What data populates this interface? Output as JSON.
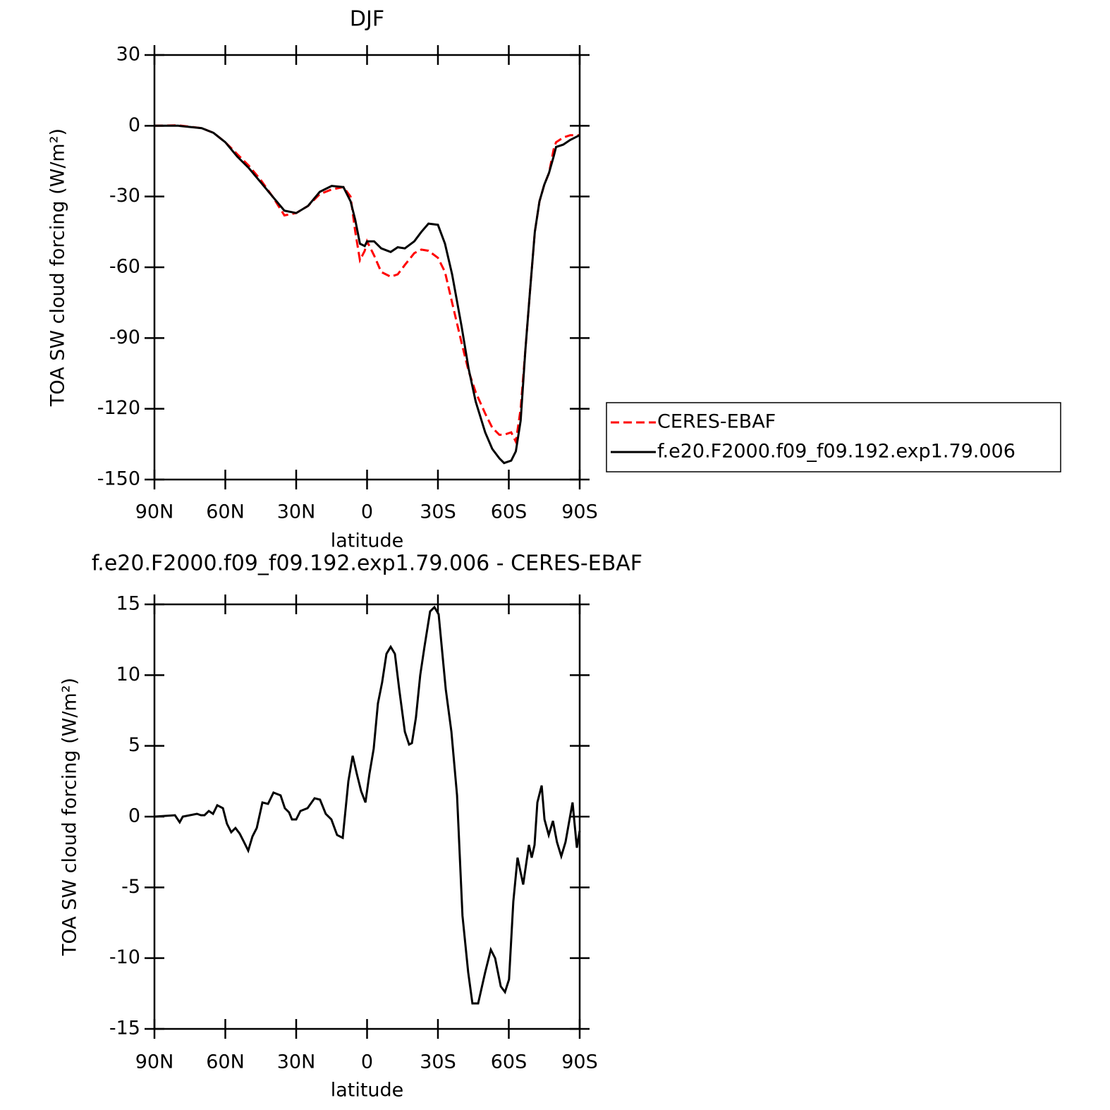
{
  "chart_data": [
    {
      "type": "line",
      "title": "DJF",
      "xlabel": "latitude",
      "ylabel": "TOA SW cloud forcing (W/m²)",
      "x": [
        90,
        80,
        70,
        65,
        60,
        55,
        50,
        45,
        40,
        35,
        30,
        25,
        20,
        15,
        10,
        7,
        5,
        3,
        1,
        0,
        -3,
        -6,
        -10,
        -13,
        -16,
        -20,
        -23,
        -26,
        -30,
        -33,
        -36,
        -40,
        -43,
        -46,
        -50,
        -53,
        -56,
        -58,
        -61,
        -63,
        -65,
        -67,
        -69,
        -71,
        -73,
        -75,
        -77,
        -79,
        -80,
        -83,
        -86,
        -90
      ],
      "series": [
        {
          "name": "CERES-EBAF",
          "color": "#ff0000",
          "style": "dashed",
          "values": [
            0,
            0.2,
            -1,
            -3,
            -7,
            -12,
            -17,
            -23,
            -30,
            -38,
            -37,
            -34,
            -29,
            -27,
            -26,
            -30,
            -45,
            -57,
            -53,
            -49,
            -55,
            -62,
            -64,
            -63,
            -59,
            -54,
            -52.5,
            -53,
            -56,
            -62,
            -75,
            -92,
            -104,
            -113,
            -122,
            -128,
            -131,
            -131,
            -130,
            -134,
            -120,
            -95,
            -70,
            -45,
            -32,
            -25,
            -20,
            -10,
            -7,
            -5,
            -4,
            -4
          ]
        },
        {
          "name": "f.e20.F2000.f09_f09.192.exp1.79.006",
          "color": "#000000",
          "style": "solid",
          "values": [
            0,
            0,
            -1,
            -3,
            -7,
            -13,
            -18,
            -24,
            -30,
            -36,
            -37,
            -34,
            -28,
            -25.5,
            -26,
            -32,
            -40,
            -50,
            -51,
            -49,
            -49,
            -52,
            -53.5,
            -51.5,
            -52,
            -49,
            -45,
            -41.5,
            -42,
            -50,
            -63,
            -85,
            -103,
            -117,
            -130,
            -137,
            -141,
            -143,
            -142,
            -138,
            -125,
            -95,
            -70,
            -45,
            -32,
            -25,
            -20,
            -13,
            -9,
            -8,
            -6,
            -4
          ]
        }
      ],
      "xlim": [
        90,
        -90
      ],
      "xticks": [
        {
          "value": 90,
          "label": "90N"
        },
        {
          "value": 60,
          "label": "60N"
        },
        {
          "value": 30,
          "label": "30N"
        },
        0,
        {
          "value": -30,
          "label": "30S"
        },
        {
          "value": -60,
          "label": "60S"
        },
        {
          "value": -90,
          "label": "90S"
        }
      ],
      "ylim": [
        -150,
        30
      ],
      "yticks": [
        -150,
        -120,
        -90,
        -60,
        -30,
        0,
        30
      ],
      "legend": "right"
    },
    {
      "type": "line",
      "title": "f.e20.F2000.f09_f09.192.exp1.79.006 - CERES-EBAF",
      "xlabel": "latitude",
      "ylabel": "TOA SW cloud forcing (W/m²)",
      "x": [
        90,
        81.3,
        79.3,
        78,
        72,
        70.3,
        68.8,
        67,
        65.2,
        63.4,
        61,
        59.3,
        57.5,
        55.7,
        53.9,
        52.1,
        50.3,
        48.5,
        46.7,
        44.3,
        41.9,
        39.6,
        36.6,
        34.8,
        33,
        31.8,
        30,
        28.2,
        25.2,
        22.2,
        19.9,
        17.5,
        15.1,
        12.7,
        10.3,
        7.9,
        6.1,
        4.3,
        2.5,
        0.7,
        -1,
        -2.8,
        -4.6,
        -6.4,
        -8.2,
        -10,
        -11.8,
        -13.6,
        -16,
        -17.8,
        -19,
        -20.7,
        -22.5,
        -24.3,
        -26.7,
        -28.5,
        -30.3,
        -33.3,
        -35.7,
        -38.1,
        -40.4,
        -42.8,
        -44.6,
        -47,
        -50,
        -52.4,
        -54.2,
        -56.6,
        -58.4,
        -60.1,
        -61.9,
        -63.7,
        -66.1,
        -68.5,
        -69.7,
        -70.9,
        -72.1,
        -73.9,
        -75.1,
        -76.9,
        -78.7,
        -80.4,
        -82.2,
        -84,
        -87,
        -88.8,
        -90
      ],
      "series": [
        {
          "color": "#000000",
          "style": "solid",
          "values": [
            0,
            0.1,
            -0.4,
            0,
            0.2,
            0.1,
            0.1,
            0.4,
            0.2,
            0.8,
            0.6,
            -0.5,
            -1.1,
            -0.8,
            -1.2,
            -1.8,
            -2.4,
            -1.4,
            -0.8,
            1,
            0.9,
            1.7,
            1.5,
            0.6,
            0.3,
            -0.2,
            -0.2,
            0.4,
            0.6,
            1.3,
            1.2,
            0.2,
            -0.2,
            -1.3,
            -1.5,
            2.5,
            4.3,
            3,
            1.8,
            1,
            3,
            4.8,
            8,
            9.5,
            11.5,
            12,
            11.5,
            9,
            6,
            5.1,
            5.2,
            7,
            10,
            12,
            14.5,
            14.8,
            14.3,
            9,
            6,
            1.5,
            -7,
            -11,
            -13.2,
            -13.2,
            -11,
            -9.4,
            -10,
            -12,
            -12.4,
            -11.5,
            -6,
            -2.9,
            -4.8,
            -2,
            -2.9,
            -2,
            1,
            2.2,
            -0.2,
            -1.3,
            -0.3,
            -1.8,
            -2.8,
            -1.8,
            1,
            -2.2,
            -1
          ]
        }
      ],
      "xlim": [
        90,
        -90
      ],
      "xticks": [
        {
          "value": 90,
          "label": "90N"
        },
        {
          "value": 60,
          "label": "60N"
        },
        {
          "value": 30,
          "label": "30N"
        },
        0,
        {
          "value": -30,
          "label": "30S"
        },
        {
          "value": -60,
          "label": "60S"
        },
        {
          "value": -90,
          "label": "90S"
        }
      ],
      "ylim": [
        -15,
        15
      ],
      "yticks": [
        -15,
        -10,
        -5,
        0,
        5,
        10,
        15
      ]
    }
  ]
}
